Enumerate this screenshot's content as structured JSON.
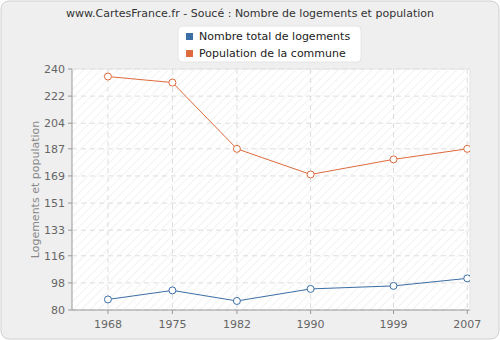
{
  "chart_data": {
    "type": "line",
    "title": "www.CartesFrance.fr - Soucé : Nombre de logements et population",
    "y_label": "Logements et population",
    "x": [
      1968,
      1975,
      1982,
      1990,
      1999,
      2007
    ],
    "series": [
      {
        "name": "Nombre total de logements",
        "color": "#3b6ea5",
        "marker": "circle",
        "values": [
          87,
          93,
          86,
          94,
          96,
          101
        ]
      },
      {
        "name": "Population de la commune",
        "color": "#dd6b3e",
        "marker": "circle",
        "values": [
          235,
          231,
          187,
          170,
          180,
          187
        ]
      }
    ],
    "xlim": [
      1964.1,
      2007.3
    ],
    "xticks": [
      1968,
      1975,
      1982,
      1990,
      1999,
      2007
    ],
    "ylim": [
      80,
      240
    ],
    "yticks": [
      80,
      98,
      116,
      133,
      151,
      169,
      187,
      204,
      222,
      240
    ],
    "grid": true,
    "legend": "top"
  }
}
